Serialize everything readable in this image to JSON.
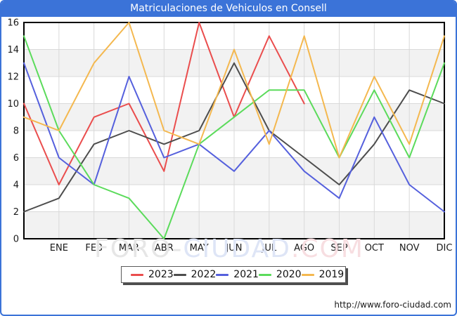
{
  "window": {
    "title": "Matriculaciones de Vehiculos en Consell"
  },
  "footer": {
    "url_label": "http://www.foro-ciudad.com"
  },
  "watermark": {
    "part1": "FORO-",
    "part2": "CIUDAD",
    "part3": ".COM"
  },
  "colors": {
    "titlebar": "#3b73d8",
    "frame_border": "#3b73d8",
    "plot_border": "#000000",
    "grid": "#d9d9d9",
    "band_gray": "#f2f2f2",
    "tick_text": "#1a1a1a",
    "watermark_gray": "#e6e6e6",
    "watermark_blue": "#dee5f6",
    "watermark_pink": "#f7dee1"
  },
  "chart_data": {
    "type": "line",
    "title": "Matriculaciones de Vehiculos en Consell",
    "categories": [
      "",
      "ENE",
      "FEB",
      "MAR",
      "ABR",
      "MAY",
      "JUN",
      "JUL",
      "AGO",
      "SEP",
      "OCT",
      "NOV",
      "DIC"
    ],
    "series": [
      {
        "name": "2023",
        "color": "#ea4d4d",
        "values": [
          10,
          4,
          9,
          10,
          5,
          16,
          9,
          15,
          10
        ]
      },
      {
        "name": "2022",
        "color": "#4d4d4d",
        "values": [
          2,
          3,
          7,
          8,
          7,
          8,
          13,
          8,
          6,
          4,
          7,
          11,
          10
        ]
      },
      {
        "name": "2021",
        "color": "#5560dd",
        "values": [
          13,
          6,
          4,
          12,
          6,
          7,
          5,
          8,
          5,
          3,
          9,
          4,
          2
        ]
      },
      {
        "name": "2020",
        "color": "#5bdb5b",
        "values": [
          15,
          8,
          4,
          3,
          0,
          7,
          9,
          11,
          11,
          6,
          11,
          6,
          13
        ]
      },
      {
        "name": "2019",
        "color": "#f4b84f",
        "values": [
          9,
          8,
          13,
          16,
          8,
          7,
          14,
          7,
          15,
          6,
          12,
          7,
          15
        ]
      }
    ],
    "ylim": [
      0,
      16
    ],
    "yticks": [
      0,
      2,
      4,
      6,
      8,
      10,
      12,
      14,
      16
    ],
    "grid": true,
    "legend_position": "bottom"
  }
}
